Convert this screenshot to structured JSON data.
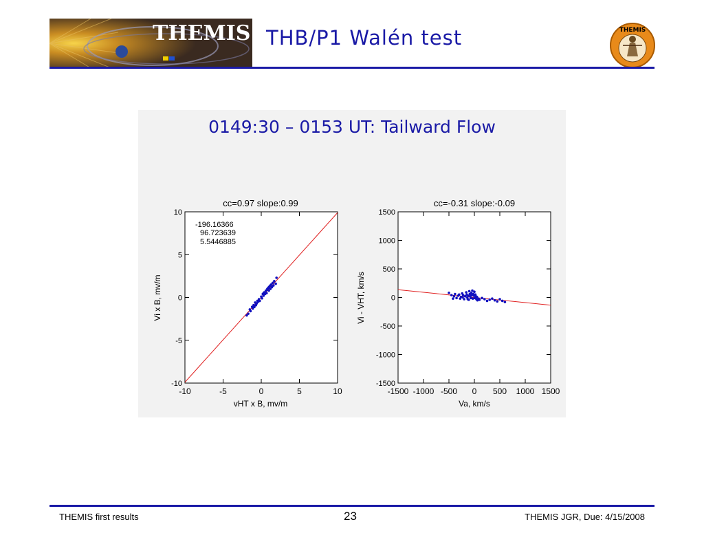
{
  "header": {
    "banner_text": "THEMIS",
    "title": "THB/P1 Walén test",
    "logo_text": "THEMIS"
  },
  "figure": {
    "title": "0149:30 – 0153 UT: Tailward Flow"
  },
  "footer": {
    "left": "THEMIS first results",
    "page": "23",
    "right": "THEMIS JGR, Due: 4/15/2008"
  },
  "colors": {
    "accent": "#1a1aa6",
    "points": "#1010c0",
    "fit_line": "#e02020"
  },
  "chart_data": [
    {
      "type": "scatter",
      "title": "cc=0.97 slope:0.99",
      "xlabel": "vHT x B, mv/m",
      "ylabel": "Vi x B, mv/m",
      "xlim": [
        -10,
        10
      ],
      "ylim": [
        -10,
        10
      ],
      "xticks": [
        "-10",
        "-5",
        "0",
        "5",
        "10"
      ],
      "yticks": [
        "-10",
        "-5",
        "0",
        "5",
        "10"
      ],
      "annotation": [
        "-196.16366",
        "96.723639",
        "5.5446885"
      ],
      "fit_line": {
        "slope": 0.99,
        "intercept": 0.0
      },
      "points": [
        [
          -1.9,
          -2.1
        ],
        [
          -1.7,
          -1.9
        ],
        [
          -1.5,
          -1.4
        ],
        [
          -1.4,
          -1.6
        ],
        [
          -1.2,
          -1.1
        ],
        [
          -1.0,
          -0.9
        ],
        [
          -0.9,
          -1.1
        ],
        [
          -0.8,
          -0.6
        ],
        [
          -0.6,
          -0.7
        ],
        [
          -0.5,
          -0.4
        ],
        [
          -0.3,
          -0.2
        ],
        [
          -0.2,
          -0.4
        ],
        [
          0.0,
          0.1
        ],
        [
          0.1,
          -0.1
        ],
        [
          0.2,
          0.4
        ],
        [
          0.3,
          0.2
        ],
        [
          0.4,
          0.6
        ],
        [
          0.5,
          0.4
        ],
        [
          0.6,
          0.8
        ],
        [
          0.7,
          0.5
        ],
        [
          0.8,
          0.9
        ],
        [
          0.9,
          1.1
        ],
        [
          1.0,
          0.8
        ],
        [
          1.1,
          1.3
        ],
        [
          1.2,
          1.0
        ],
        [
          1.3,
          1.5
        ],
        [
          1.4,
          1.2
        ],
        [
          1.5,
          1.7
        ],
        [
          1.6,
          1.4
        ],
        [
          1.7,
          1.9
        ],
        [
          1.9,
          1.6
        ],
        [
          2.0,
          2.3
        ],
        [
          -1.1,
          -1.3
        ],
        [
          -0.7,
          -0.9
        ],
        [
          0.3,
          0.5
        ],
        [
          0.8,
          1.0
        ],
        [
          1.2,
          1.4
        ],
        [
          -0.4,
          -0.5
        ],
        [
          0.6,
          0.5
        ],
        [
          1.0,
          1.2
        ]
      ]
    },
    {
      "type": "scatter",
      "title": "cc=-0.31 slope:-0.09",
      "xlabel": "Va, km/s",
      "ylabel": "Vi - VHT, km/s",
      "xlim": [
        -1500,
        1500
      ],
      "ylim": [
        -1500,
        1500
      ],
      "xticks": [
        "-1500",
        "-1000",
        "-500",
        "0",
        "500",
        "1000",
        "1500"
      ],
      "yticks": [
        "-1500",
        "-1000",
        "-500",
        "0",
        "500",
        "1000",
        "1500"
      ],
      "fit_line": {
        "slope": -0.09,
        "intercept": 0
      },
      "points": [
        [
          -500,
          80
        ],
        [
          -450,
          40
        ],
        [
          -400,
          20
        ],
        [
          -380,
          60
        ],
        [
          -350,
          -10
        ],
        [
          -320,
          30
        ],
        [
          -300,
          50
        ],
        [
          -280,
          -20
        ],
        [
          -260,
          10
        ],
        [
          -240,
          70
        ],
        [
          -220,
          40
        ],
        [
          -200,
          -30
        ],
        [
          -180,
          20
        ],
        [
          -160,
          90
        ],
        [
          -150,
          50
        ],
        [
          -140,
          0
        ],
        [
          -120,
          30
        ],
        [
          -110,
          -40
        ],
        [
          -100,
          110
        ],
        [
          -90,
          60
        ],
        [
          -80,
          20
        ],
        [
          -70,
          -10
        ],
        [
          -60,
          80
        ],
        [
          -50,
          40
        ],
        [
          -40,
          120
        ],
        [
          -30,
          -20
        ],
        [
          -20,
          60
        ],
        [
          -10,
          30
        ],
        [
          0,
          100
        ],
        [
          10,
          -10
        ],
        [
          20,
          50
        ],
        [
          30,
          20
        ],
        [
          40,
          -30
        ],
        [
          50,
          10
        ],
        [
          60,
          -50
        ],
        [
          80,
          -20
        ],
        [
          100,
          -40
        ],
        [
          150,
          -10
        ],
        [
          200,
          -30
        ],
        [
          250,
          -60
        ],
        [
          300,
          -40
        ],
        [
          350,
          -20
        ],
        [
          400,
          -50
        ],
        [
          450,
          -70
        ],
        [
          500,
          -30
        ],
        [
          550,
          -60
        ],
        [
          600,
          -80
        ],
        [
          -420,
          -20
        ],
        [
          -230,
          0
        ],
        [
          -130,
          -30
        ]
      ]
    }
  ]
}
